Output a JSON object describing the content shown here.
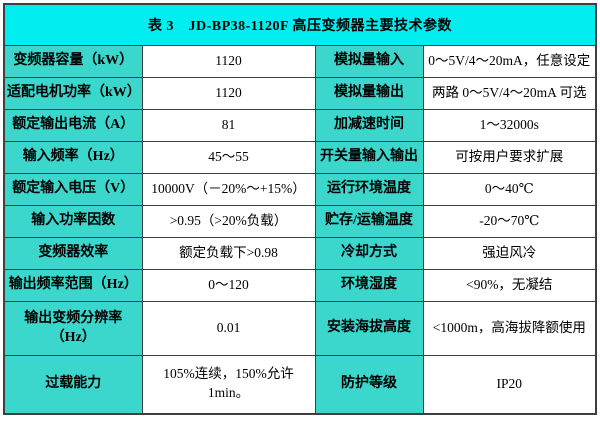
{
  "table": {
    "title": "表 3　JD-BP38-1120F  高压变频器主要技术参数",
    "rows": [
      {
        "label1": "变频器容量（kW）",
        "value1": "1120",
        "label2": "模拟量输入",
        "value2": "0～5V/4～20mA，任意设定"
      },
      {
        "label1": "适配电机功率（kW）",
        "value1": "1120",
        "label2": "模拟量输出",
        "value2": "两路 0～5V/4～20mA 可选"
      },
      {
        "label1": "额定输出电流（A）",
        "value1": "81",
        "label2": "加减速时间",
        "value2": "1～32000s"
      },
      {
        "label1": "输入频率（Hz）",
        "value1": "45～55",
        "label2": "开关量输入输出",
        "value2": "可按用户要求扩展"
      },
      {
        "label1": "额定输入电压（V）",
        "value1": "10000V（－20%～+15%）",
        "label2": "运行环境温度",
        "value2": "0～40℃"
      },
      {
        "label1": "输入功率因数",
        "value1": ">0.95（>20%负载）",
        "label2": "贮存/运输温度",
        "value2": "-20～70℃"
      },
      {
        "label1": "变频器效率",
        "value1": "额定负载下>0.98",
        "label2": "冷却方式",
        "value2": "强迫风冷"
      },
      {
        "label1": "输出频率范围（Hz）",
        "value1": "0～120",
        "label2": "环境湿度",
        "value2": "<90%，无凝结"
      },
      {
        "label1": "输出变频分辨率\n（Hz）",
        "value1": "0.01",
        "label2": "安装海拔高度",
        "value2": "<1000m，高海拔降额使用"
      },
      {
        "label1": "过载能力",
        "value1": "105%连续，150%允许\n1min。",
        "label2": "防护等级",
        "value2": "IP20"
      }
    ]
  },
  "colors": {
    "title_bg": "#00eef0",
    "label_bg": "#3bd6cc",
    "value_bg": "#ffffff",
    "border": "#3f3f3f",
    "text": "#000000"
  }
}
